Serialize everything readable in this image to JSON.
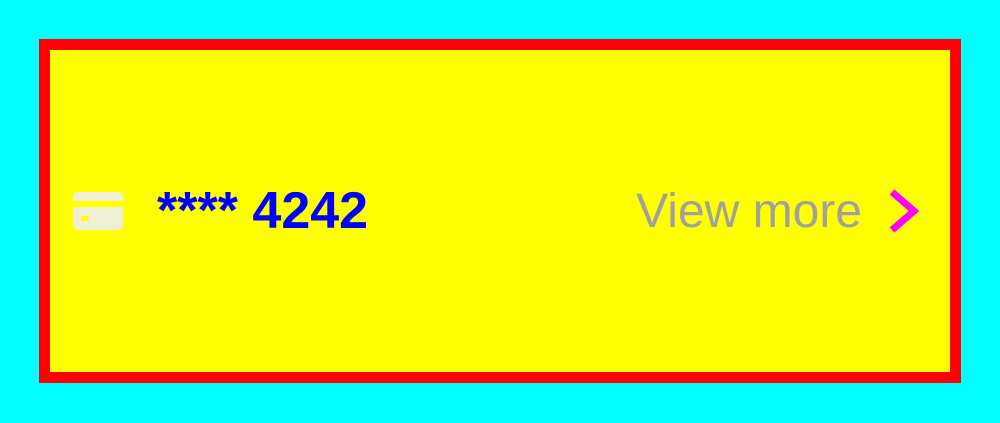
{
  "payment_card": {
    "icon": "credit-card-icon",
    "masked_number": "**** 4242",
    "view_more_label": "View more",
    "chevron_icon": "chevron-right-icon"
  },
  "colors": {
    "page_background": "#00FFFF",
    "card_background": "#FFFF00",
    "card_border": "#FF0000",
    "number_text": "#0000FF",
    "view_more_text": "#A0A0A0",
    "chevron": "#FF00FF",
    "card_icon": "#EFEFD6"
  }
}
